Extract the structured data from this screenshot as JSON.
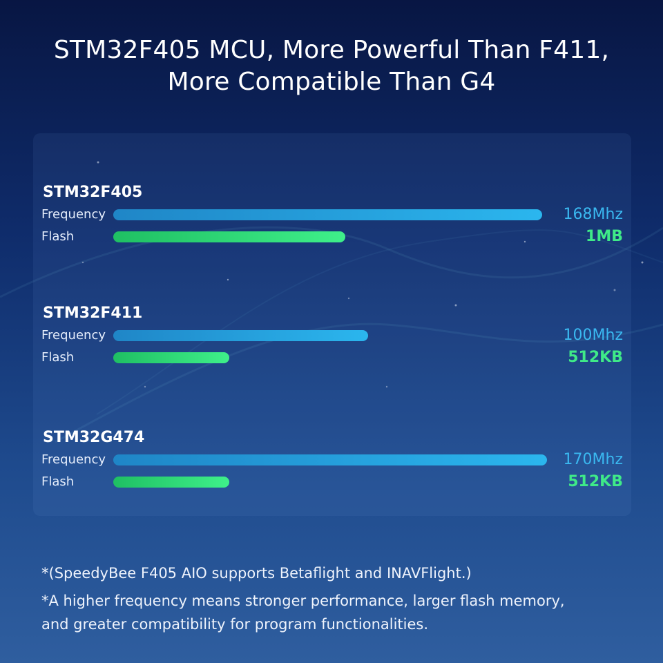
{
  "title": {
    "line1": "STM32F405 MCU, More Powerful Than F411,",
    "line2": "More Compatible Than G4"
  },
  "chart_data": {
    "type": "bar",
    "orientation": "horizontal",
    "groups": [
      {
        "name": "STM32F405",
        "frequency": {
          "label": "Frequency",
          "value": 168,
          "display": "168Mhz"
        },
        "flash": {
          "label": "Flash",
          "value": 1024,
          "display": "1MB"
        }
      },
      {
        "name": "STM32F411",
        "frequency": {
          "label": "Frequency",
          "value": 100,
          "display": "100Mhz"
        },
        "flash": {
          "label": "Flash",
          "value": 512,
          "display": "512KB"
        }
      },
      {
        "name": "STM32G474",
        "frequency": {
          "label": "Frequency",
          "value": 170,
          "display": "170Mhz"
        },
        "flash": {
          "label": "Flash",
          "value": 512,
          "display": "512KB"
        }
      }
    ],
    "frequency_max": 170,
    "flash_max": 1024,
    "grid": false,
    "legend": "none"
  },
  "colors": {
    "frequency": "#2bb6ee",
    "flash": "#3ff08a",
    "background_top": "#081643",
    "background_bottom": "#2f5e9f"
  },
  "notes": [
    "*(SpeedyBee F405 AIO supports Betaflight and INAVFlight.)",
    "*A higher frequency means stronger performance, larger flash memory,",
    "and greater compatibility for program functionalities."
  ]
}
